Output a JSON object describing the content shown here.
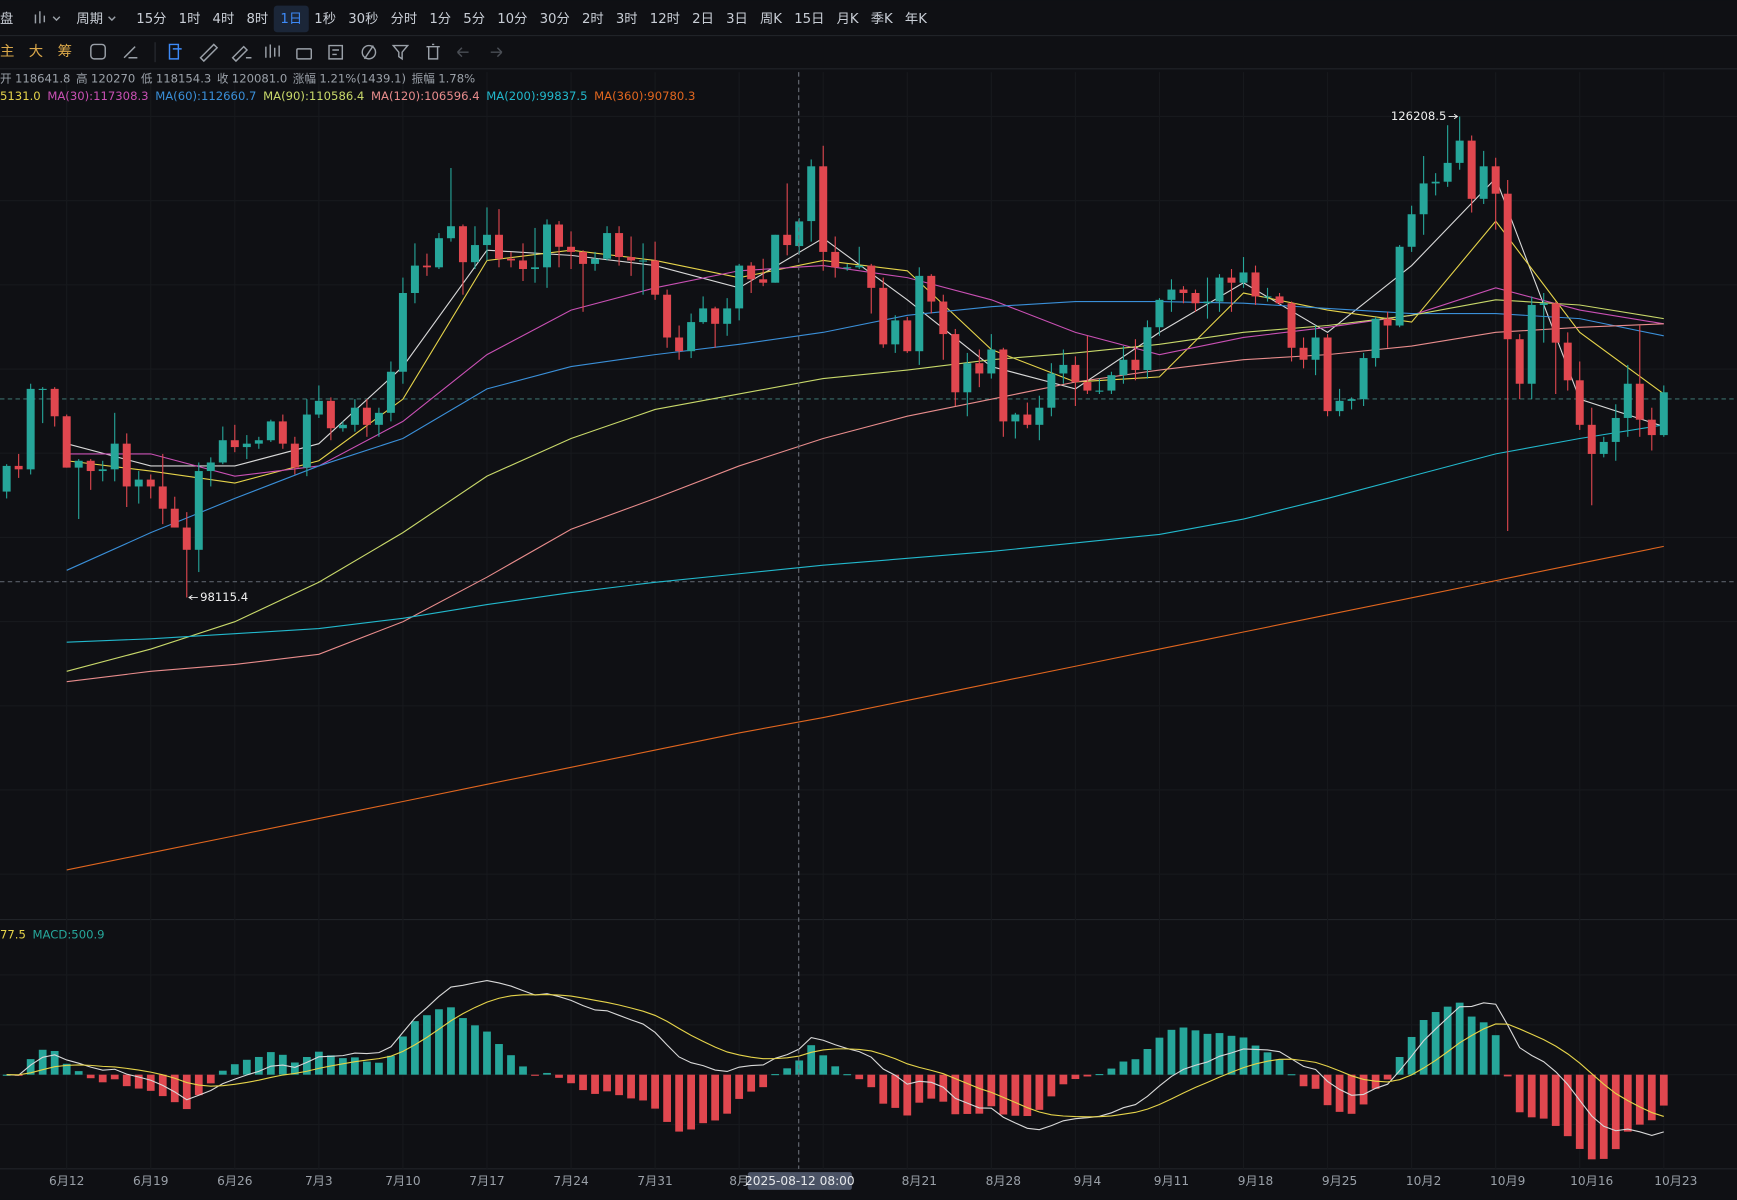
{
  "toolbar": {
    "cut_title": "盘",
    "period": "周期",
    "intervals": [
      "15分",
      "1时",
      "4时",
      "8时",
      "1日",
      "1秒",
      "30秒",
      "分时",
      "1分",
      "5分",
      "10分",
      "30分",
      "2时",
      "3时",
      "12时",
      "2日",
      "3日",
      "周K",
      "15日",
      "月K",
      "季K",
      "年K"
    ],
    "selected": "1日",
    "tools": [
      "主",
      "大",
      "筹"
    ]
  },
  "info": [
    {
      "label": "开",
      "value": "118641.8"
    },
    {
      "label": "高",
      "value": "120270"
    },
    {
      "label": "低",
      "value": "118154.3"
    },
    {
      "label": "收",
      "value": "120081.0"
    },
    {
      "label": "涨幅",
      "value": "1.21%(1439.1)"
    },
    {
      "label": "振幅",
      "value": "1.78%"
    }
  ],
  "crosshair_label": "2025-08-12 08:00",
  "chart_data": {
    "type": "candlestick",
    "up_color": "#26a69a",
    "down_color": "#e0474f",
    "ylim": [
      79300,
      128800
    ],
    "categories": [
      null,
      null,
      null,
      null,
      null,
      "6月12",
      null,
      null,
      null,
      null,
      null,
      null,
      "6月19",
      null,
      null,
      null,
      null,
      null,
      null,
      "6月26",
      null,
      null,
      null,
      null,
      null,
      null,
      "7月3",
      null,
      null,
      null,
      null,
      null,
      null,
      "7月10",
      null,
      null,
      null,
      null,
      null,
      null,
      "7月17",
      null,
      null,
      null,
      null,
      null,
      null,
      "7月24",
      null,
      null,
      null,
      null,
      null,
      null,
      "7月31",
      null,
      null,
      null,
      null,
      null,
      null,
      "8月",
      null,
      null,
      null,
      null,
      null,
      null,
      null,
      null,
      null,
      null,
      null,
      null,
      null,
      null,
      "8月21",
      null,
      null,
      null,
      null,
      null,
      null,
      "8月28",
      null,
      null,
      null,
      null,
      null,
      null,
      "9月4",
      null,
      null,
      null,
      null,
      null,
      null,
      "9月11",
      null,
      null,
      null,
      null,
      null,
      null,
      "9月18",
      null,
      null,
      null,
      null,
      null,
      null,
      "9月25",
      null,
      null,
      null,
      null,
      null,
      null,
      "10月2",
      null,
      null,
      null,
      null,
      null,
      null,
      "10月9",
      null,
      null,
      null,
      null,
      null,
      null,
      "10月16",
      null,
      null,
      null,
      null,
      null,
      null,
      "10月23"
    ],
    "ohlc": [
      [
        104300,
        105900,
        103900,
        105800
      ],
      [
        105800,
        106500,
        105100,
        105600
      ],
      [
        105600,
        110600,
        105300,
        110300
      ],
      [
        110300,
        110400,
        108300,
        110300
      ],
      [
        110300,
        110400,
        108100,
        108700
      ],
      [
        108700,
        108800,
        105700,
        105700
      ],
      [
        105700,
        106200,
        102700,
        106100
      ],
      [
        106100,
        106200,
        104400,
        105500
      ],
      [
        105500,
        106100,
        104900,
        105600
      ],
      [
        105600,
        108900,
        104900,
        107100
      ],
      [
        107100,
        107700,
        103400,
        104600
      ],
      [
        104600,
        105500,
        103600,
        105000
      ],
      [
        105000,
        105300,
        103900,
        104600
      ],
      [
        104600,
        106500,
        102400,
        103300
      ],
      [
        103300,
        104000,
        102200,
        102200
      ],
      [
        102200,
        103100,
        98115.4,
        100900
      ],
      [
        100900,
        106000,
        99600,
        105500
      ],
      [
        105500,
        106300,
        104600,
        106000
      ],
      [
        106000,
        108100,
        105900,
        107300
      ],
      [
        107300,
        108200,
        106600,
        106900
      ],
      [
        106900,
        107600,
        106200,
        107100
      ],
      [
        107100,
        107500,
        106800,
        107300
      ],
      [
        107300,
        108500,
        107200,
        108400
      ],
      [
        108400,
        108800,
        106800,
        107100
      ],
      [
        107100,
        107500,
        105300,
        105700
      ],
      [
        105700,
        109700,
        105200,
        108800
      ],
      [
        108800,
        110500,
        108600,
        109600
      ],
      [
        109600,
        109800,
        107300,
        108000
      ],
      [
        108000,
        108400,
        107800,
        108200
      ],
      [
        108200,
        109700,
        107800,
        109200
      ],
      [
        109200,
        109700,
        107500,
        108200
      ],
      [
        108200,
        109200,
        107500,
        108900
      ],
      [
        108900,
        111900,
        108400,
        111300
      ],
      [
        111300,
        116800,
        110600,
        115900
      ],
      [
        115900,
        118800,
        115300,
        117500
      ],
      [
        117500,
        118200,
        116900,
        117400
      ],
      [
        117400,
        119400,
        117300,
        119100
      ],
      [
        119100,
        123200,
        118900,
        119800
      ],
      [
        119800,
        119900,
        115800,
        117700
      ],
      [
        117700,
        119800,
        117300,
        118700
      ],
      [
        118700,
        120900,
        117800,
        119300
      ],
      [
        119300,
        120800,
        117400,
        117900
      ],
      [
        117900,
        118300,
        117400,
        117800
      ],
      [
        117800,
        118800,
        116600,
        117300
      ],
      [
        117300,
        119700,
        116500,
        117400
      ],
      [
        117400,
        120200,
        116200,
        119900
      ],
      [
        119900,
        120100,
        117400,
        118600
      ],
      [
        118600,
        119500,
        117300,
        118300
      ],
      [
        118300,
        118400,
        114800,
        117600
      ],
      [
        117600,
        118300,
        117200,
        117900
      ],
      [
        117900,
        119800,
        117800,
        119400
      ],
      [
        119400,
        119800,
        117500,
        118000
      ],
      [
        118000,
        119200,
        116900,
        117800
      ],
      [
        117800,
        118800,
        115800,
        117800
      ],
      [
        117800,
        118900,
        115500,
        115800
      ],
      [
        115800,
        116100,
        112700,
        113300
      ],
      [
        113300,
        114000,
        112000,
        112500
      ],
      [
        112500,
        114700,
        112100,
        114200
      ],
      [
        114200,
        115700,
        114100,
        115000
      ],
      [
        115000,
        115100,
        112700,
        114100
      ],
      [
        114100,
        115600,
        113400,
        115000
      ],
      [
        115000,
        117600,
        114300,
        117500
      ],
      [
        117500,
        117700,
        115900,
        116700
      ],
      [
        116700,
        117900,
        116300,
        116500
      ],
      [
        116500,
        119300,
        116500,
        119300
      ],
      [
        119300,
        122300,
        118100,
        118700
      ],
      [
        118641.8,
        120270,
        118154.3,
        120081
      ],
      [
        120100,
        123700,
        118900,
        123300
      ],
      [
        123300,
        124500,
        117200,
        118300
      ],
      [
        118300,
        119200,
        116800,
        117400
      ],
      [
        117400,
        117600,
        117200,
        117400
      ],
      [
        117400,
        118600,
        117300,
        117500
      ],
      [
        117500,
        117600,
        114700,
        116200
      ],
      [
        116200,
        116800,
        112700,
        112900
      ],
      [
        112900,
        114600,
        112400,
        114300
      ],
      [
        114300,
        114500,
        112400,
        112500
      ],
      [
        112500,
        117400,
        111700,
        116900
      ],
      [
        116900,
        117000,
        114700,
        115400
      ],
      [
        115400,
        115800,
        112000,
        113500
      ],
      [
        113500,
        113800,
        109300,
        110100
      ],
      [
        110100,
        112400,
        108700,
        111800
      ],
      [
        111800,
        112600,
        110400,
        111200
      ],
      [
        111200,
        113500,
        110900,
        112600
      ],
      [
        112600,
        112700,
        107500,
        108400
      ],
      [
        108400,
        108900,
        107400,
        108800
      ],
      [
        108800,
        109500,
        108000,
        108200
      ],
      [
        108200,
        109900,
        107300,
        109200
      ],
      [
        109200,
        111800,
        108700,
        111200
      ],
      [
        111200,
        112600,
        110600,
        111700
      ],
      [
        111700,
        112200,
        109300,
        110700
      ],
      [
        110700,
        113400,
        110000,
        110200
      ],
      [
        110200,
        110900,
        110000,
        110200
      ],
      [
        110200,
        111300,
        110000,
        111100
      ],
      [
        111100,
        112800,
        110600,
        112000
      ],
      [
        112000,
        113200,
        110800,
        111400
      ],
      [
        111400,
        114300,
        110900,
        113900
      ],
      [
        113900,
        115600,
        113400,
        115500
      ],
      [
        115500,
        116700,
        114800,
        116100
      ],
      [
        116100,
        116300,
        115300,
        115900
      ],
      [
        115900,
        116100,
        114800,
        115300
      ],
      [
        115300,
        116800,
        114400,
        115400
      ],
      [
        115400,
        117000,
        114800,
        116800
      ],
      [
        116800,
        117300,
        114800,
        116500
      ],
      [
        116500,
        118000,
        116200,
        117100
      ],
      [
        117100,
        117500,
        115200,
        115700
      ],
      [
        115700,
        116200,
        115400,
        115700
      ],
      [
        115700,
        115900,
        115200,
        115300
      ],
      [
        115300,
        115400,
        111900,
        112700
      ],
      [
        112700,
        113300,
        111500,
        112000
      ],
      [
        112000,
        114000,
        111100,
        113300
      ],
      [
        113300,
        113500,
        108700,
        109000
      ],
      [
        109000,
        110300,
        108700,
        109600
      ],
      [
        109600,
        109800,
        109100,
        109700
      ],
      [
        109700,
        112400,
        109300,
        112100
      ],
      [
        112100,
        114500,
        111600,
        114400
      ],
      [
        114400,
        114800,
        112700,
        114000
      ],
      [
        114000,
        118700,
        113900,
        118600
      ],
      [
        118600,
        121000,
        118300,
        120500
      ],
      [
        120500,
        123900,
        119300,
        122300
      ],
      [
        122300,
        122900,
        121600,
        122400
      ],
      [
        122400,
        125700,
        122100,
        123500
      ],
      [
        123500,
        126208.5,
        123100,
        124800
      ],
      [
        124800,
        125100,
        120600,
        121400
      ],
      [
        121400,
        124200,
        121100,
        123300
      ],
      [
        123300,
        123800,
        119600,
        121700
      ],
      [
        121700,
        122500,
        102000,
        113200
      ],
      [
        113200,
        113500,
        109700,
        110600
      ],
      [
        110600,
        115700,
        109700,
        115200
      ],
      [
        115200,
        115900,
        113000,
        115300
      ],
      [
        115300,
        115400,
        110000,
        113000
      ],
      [
        113000,
        113600,
        110200,
        110800
      ],
      [
        110800,
        111900,
        107900,
        108200
      ],
      [
        108200,
        109200,
        103500,
        106500
      ],
      [
        106500,
        107500,
        106300,
        107200
      ],
      [
        107200,
        109400,
        106100,
        108600
      ],
      [
        108600,
        111700,
        107500,
        110600
      ],
      [
        110600,
        114000,
        107500,
        108500
      ],
      [
        108500,
        109200,
        106700,
        107600
      ],
      [
        107600,
        110500,
        107500,
        110100
      ]
    ],
    "high_label": "126208.5",
    "low_label": "98115.4",
    "ma_lines": [
      {
        "color": "#d8d8d8",
        "values": [
          107100,
          105800,
          105800,
          107100,
          111600,
          118400,
          118100,
          117500,
          116200,
          119100,
          115500,
          111600,
          110300,
          113600,
          116500,
          113600,
          117500,
          122600,
          109700,
          108100
        ]
      },
      {
        "label": "5131.0",
        "color": "#e5d34a",
        "values": [
          106100,
          105500,
          104800,
          106100,
          109700,
          117800,
          118400,
          117800,
          116800,
          117800,
          117200,
          112600,
          110700,
          111000,
          115900,
          114900,
          114200,
          120100,
          113600,
          110000
        ]
      },
      {
        "label": "MA(30):117308.3",
        "color": "#c950b4",
        "values": [
          106500,
          106500,
          105200,
          105800,
          108400,
          112300,
          114900,
          116200,
          117200,
          117500,
          116800,
          115500,
          113600,
          112300,
          113300,
          113900,
          114600,
          116200,
          114900,
          114100
        ]
      },
      {
        "label": "MA(60):112660.7",
        "color": "#3a8fd8",
        "values": [
          99700,
          101900,
          103900,
          105800,
          107400,
          110300,
          111600,
          112300,
          112900,
          113600,
          114600,
          115100,
          115400,
          115400,
          115300,
          115000,
          114700,
          114700,
          114400,
          113400
        ]
      },
      {
        "label": "MA(90):110586.4",
        "color": "#c8d86a",
        "values": [
          93800,
          95100,
          96700,
          99000,
          101900,
          105200,
          107400,
          109100,
          110000,
          110900,
          111400,
          112000,
          112400,
          112900,
          113600,
          114000,
          114600,
          115500,
          115200,
          114400
        ]
      },
      {
        "label": "MA(120):106596.4",
        "color": "#e88c8c",
        "values": [
          93200,
          93800,
          94200,
          94800,
          96700,
          99300,
          102100,
          103900,
          105800,
          107400,
          108700,
          109700,
          110700,
          111400,
          112000,
          112300,
          112800,
          113600,
          113900,
          114100
        ]
      },
      {
        "label": "MA(200):99837.5",
        "color": "#22b8cc",
        "values": [
          95500,
          95700,
          96000,
          96300,
          96900,
          97700,
          98400,
          99000,
          99500,
          100000,
          100400,
          100800,
          101300,
          101800,
          102700,
          103900,
          105200,
          106500,
          107400,
          108200
        ]
      },
      {
        "label": "MA(360):90780.3",
        "color": "#e0661f",
        "values": [
          82200,
          83200,
          84200,
          85200,
          86200,
          87200,
          88200,
          89200,
          90200,
          91100,
          92100,
          93100,
          94100,
          95100,
          96100,
          97100,
          98100,
          99100,
          100100,
          101100
        ]
      }
    ],
    "macd": {
      "dif_color": "#d8d8d8",
      "dea_color": "#e5d34a",
      "legend": [
        {
          "text": "77.5",
          "color": "#e5d34a"
        },
        {
          "text": "MACD:500.9",
          "color": "#26a69a"
        }
      ]
    }
  }
}
